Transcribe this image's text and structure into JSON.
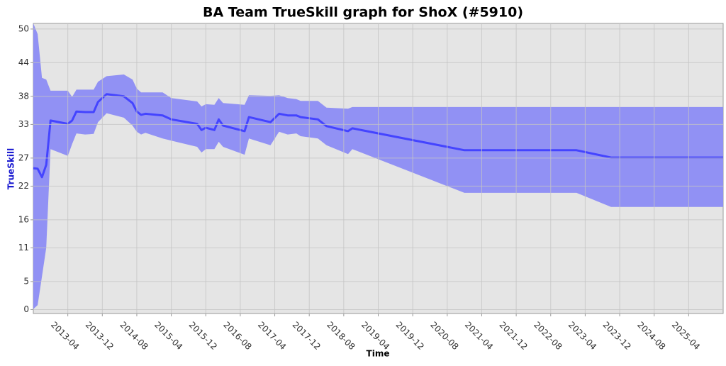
{
  "chart_data": {
    "type": "band-line",
    "title": "BA Team TrueSkill graph for ShoX (#5910)",
    "x_label": "Time",
    "y_label": "TrueSkill",
    "x": [
      "2012-08",
      "2012-09",
      "2012-10",
      "2012-11",
      "2012-12",
      "2013-04",
      "2013-05",
      "2013-06",
      "2013-08",
      "2013-10",
      "2013-11",
      "2014-01",
      "2014-05",
      "2014-07",
      "2014-08",
      "2014-09",
      "2014-10",
      "2015-02",
      "2015-04",
      "2015-10",
      "2015-11",
      "2015-12",
      "2016-02",
      "2016-03",
      "2016-04",
      "2016-09",
      "2016-10",
      "2017-03",
      "2017-05",
      "2017-07",
      "2017-09",
      "2017-10",
      "2018-02",
      "2018-04",
      "2018-09",
      "2018-10",
      "2020-12",
      "2023-02",
      "2023-10",
      "2025-12"
    ],
    "series": [
      {
        "color": "#4444ff",
        "values": [
          25.2,
          25.1,
          23.6,
          25.8,
          33.7,
          33.1,
          33.7,
          35.3,
          35.2,
          35.2,
          37,
          38.4,
          38,
          36.8,
          35.3,
          34.7,
          34.9,
          34.6,
          33.9,
          33.1,
          32,
          32.4,
          32,
          33.9,
          32.8,
          31.8,
          34.3,
          33.4,
          34.9,
          34.6,
          34.6,
          34.3,
          33.9,
          32.7,
          31.8,
          32.3,
          28.4,
          28.4,
          27.1,
          27.1
        ]
      }
    ],
    "band": {
      "color": "#8c8cf4",
      "upper": [
        51,
        49.1,
        41.3,
        41,
        39,
        39,
        37.9,
        39.2,
        39.2,
        39.2,
        40.6,
        41.6,
        41.9,
        41,
        39.4,
        38.7,
        38.7,
        38.7,
        37.7,
        37.1,
        36.2,
        36.6,
        36.5,
        37.7,
        36.8,
        36.5,
        38.2,
        38.1,
        38.2,
        37.7,
        37.5,
        37.2,
        37.2,
        36,
        35.8,
        36.1,
        36.1,
        36.1,
        36.1,
        36.1
      ],
      "lower": [
        0.1,
        0.8,
        5.9,
        11,
        28.6,
        27.4,
        29.5,
        31.4,
        31.2,
        31.3,
        33.4,
        35,
        34.2,
        32.8,
        31.7,
        31.2,
        31.5,
        30.5,
        30.1,
        29,
        28,
        28.6,
        28.6,
        29.9,
        29,
        27.6,
        30.5,
        29.3,
        31.7,
        31.2,
        31.4,
        30.9,
        30.5,
        29.3,
        27.7,
        28.6,
        20.8,
        20.8,
        18.3,
        18.3
      ]
    },
    "xlim": [
      "2012-08",
      "2025-12"
    ],
    "xticks": [
      "2013-04",
      "2013-12",
      "2014-08",
      "2015-04",
      "2015-12",
      "2016-08",
      "2017-04",
      "2017-12",
      "2018-08",
      "2019-04",
      "2019-12",
      "2020-08",
      "2021-04",
      "2021-12",
      "2022-08",
      "2023-04",
      "2023-12",
      "2024-08",
      "2025-04"
    ],
    "ylim": [
      -0.7,
      51
    ],
    "yticks": [
      0,
      5,
      11,
      16,
      22,
      27,
      33,
      38,
      44,
      50
    ],
    "grid": true
  }
}
